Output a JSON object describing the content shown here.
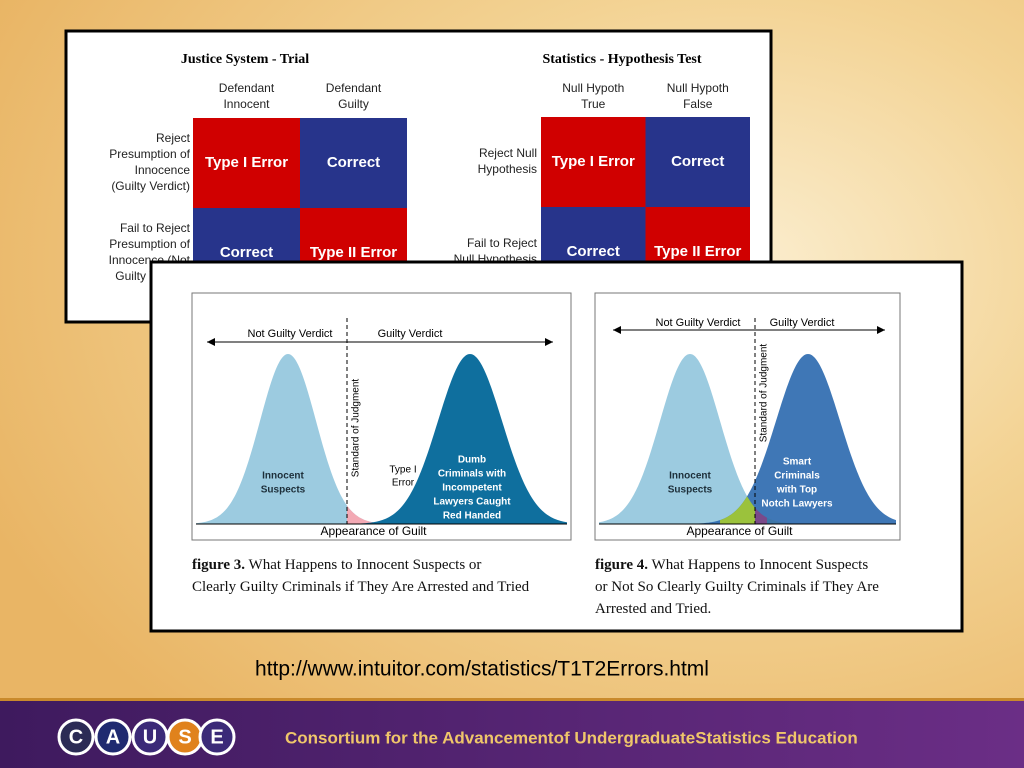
{
  "top_panel": {
    "left_table": {
      "title": "Justice System - Trial",
      "columns": [
        [
          "Defendant",
          "Innocent"
        ],
        [
          "Defendant",
          "Guilty"
        ]
      ],
      "rows": [
        {
          "label": [
            "Reject",
            "Presumption of",
            "Innocence",
            "(Guilty Verdict)"
          ],
          "cells": [
            "Type I Error",
            "Correct"
          ]
        },
        {
          "label": [
            "Fail to Reject",
            "Presumption of",
            "Innocence (Not",
            "Guilty Verdict)"
          ],
          "cells": [
            "Correct",
            "Type II Error"
          ]
        }
      ]
    },
    "right_table": {
      "title": "Statistics - Hypothesis Test",
      "columns": [
        [
          "Null Hypoth",
          "True"
        ],
        [
          "Null Hypoth",
          "False"
        ]
      ],
      "rows": [
        {
          "label": [
            "Reject Null",
            "Hypothesis"
          ],
          "cells": [
            "Type I Error",
            "Correct"
          ]
        },
        {
          "label": [
            "Fail to Reject",
            "Null Hypothesis"
          ],
          "cells": [
            "Correct",
            "Type II Error"
          ]
        }
      ]
    }
  },
  "figures": [
    {
      "verdicts": [
        "Not Guilty Verdict",
        "Guilty Verdict"
      ],
      "threshold": "Standard of Judgment",
      "left_group": [
        "Innocent",
        "Suspects"
      ],
      "right_group": [
        "Dumb",
        "Criminals with",
        "Incompetent",
        "Lawyers Caught",
        "Red Handed"
      ],
      "error": [
        "Type I",
        "Error"
      ],
      "axis": "Appearance of Guilt",
      "caption_label": "figure 3.",
      "caption": [
        "What Happens to Innocent Suspects or",
        "Clearly Guilty Criminals if They Are Arrested and Tried"
      ]
    },
    {
      "verdicts": [
        "Not Guilty Verdict",
        "Guilty Verdict"
      ],
      "threshold": "Standard of Judgment",
      "left_group": [
        "Innocent",
        "Suspects"
      ],
      "right_group": [
        "Smart",
        "Criminals",
        "with Top",
        "Notch Lawyers"
      ],
      "axis": "Appearance of Guilt",
      "caption_label": "figure 4.",
      "caption": [
        "What Happens to Innocent Suspects",
        "or Not So Clearly Guilty Criminals if They Are",
        "Arrested and Tried."
      ]
    }
  ],
  "url": "http://www.intuitor.com/statistics/T1T2Errors.html",
  "footer": {
    "logo": [
      "C",
      "A",
      "U",
      "S",
      "E"
    ],
    "text": "Consortium for the Advancementof UndergraduateStatistics Education"
  }
}
